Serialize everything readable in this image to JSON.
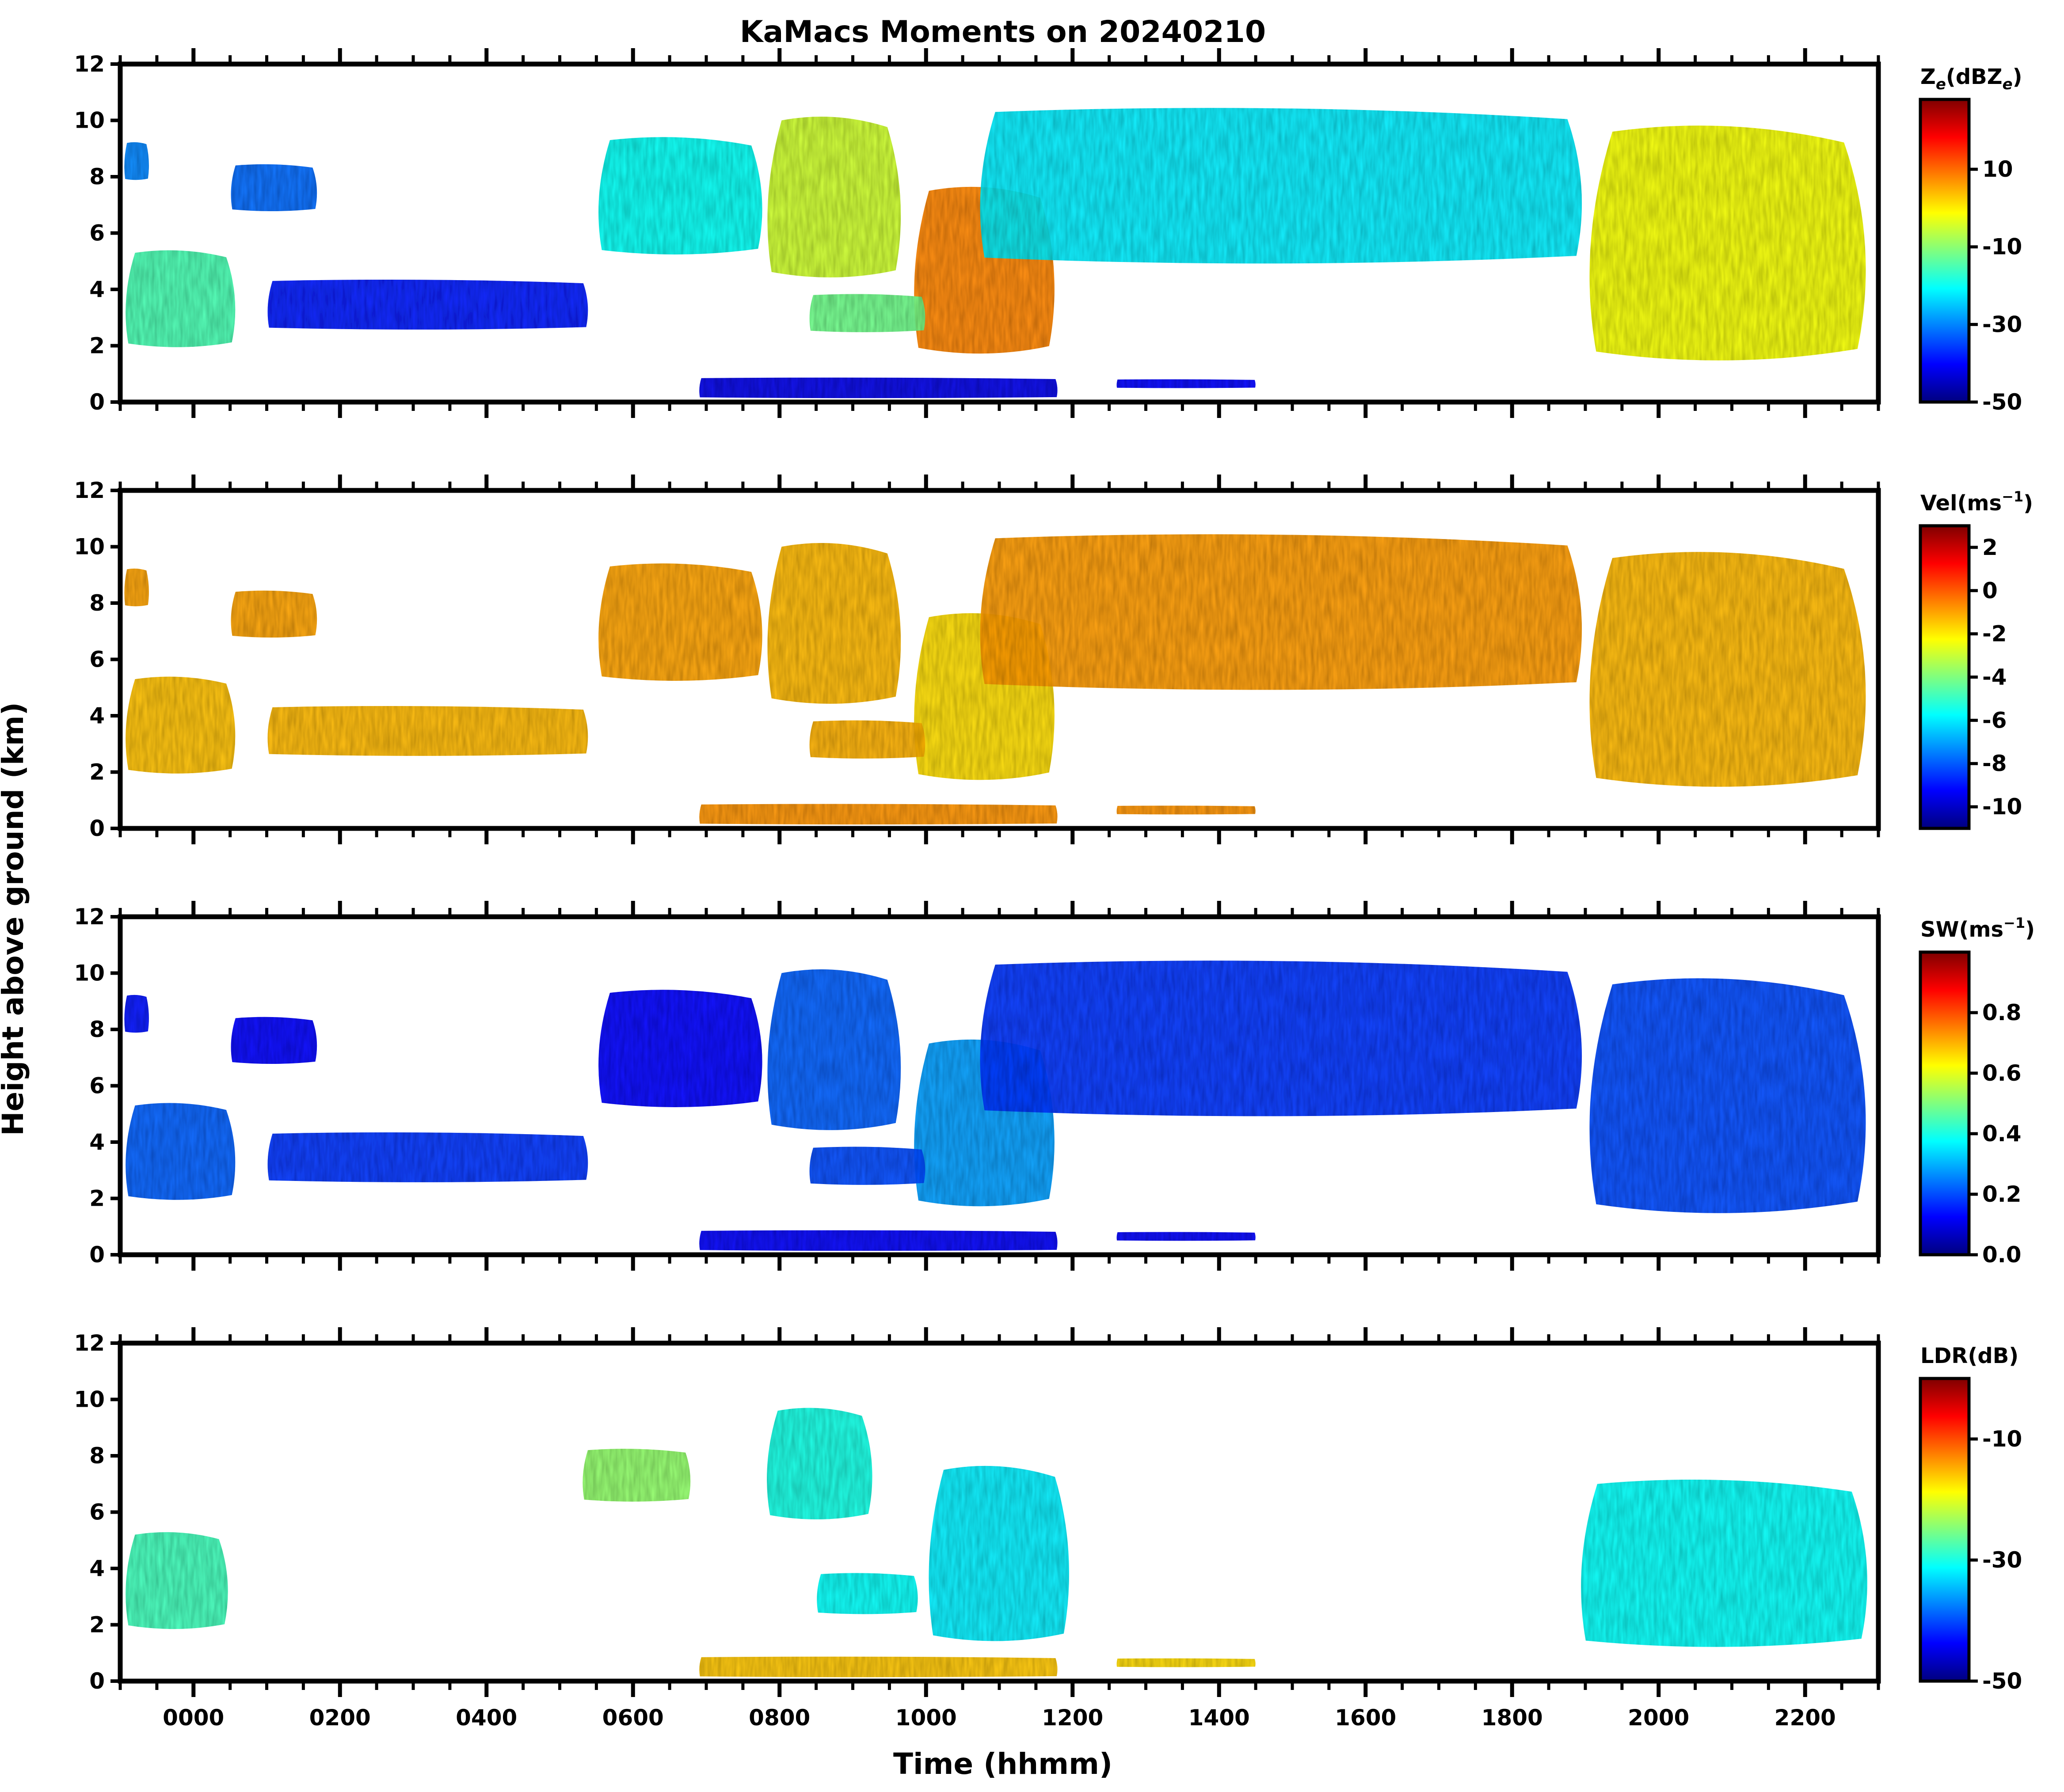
{
  "figure_title": "KaMacs Moments on 20240210",
  "ylabel": "Height above ground (km)",
  "xlabel": "Time (hhmm)",
  "chart_data": {
    "type": "heatmap",
    "title": "KaMacs Moments on 20240210",
    "xlabel": "Time (hhmm)",
    "ylabel": "Height above ground (km)",
    "xlim_hours": [
      -1.0,
      23.0
    ],
    "ylim": [
      0,
      12
    ],
    "yticks": [
      0,
      2,
      4,
      6,
      8,
      10,
      12
    ],
    "ytick_labels": [
      "0",
      "2",
      "4",
      "6",
      "8",
      "10",
      "12"
    ],
    "xticks_hours": [
      0,
      2,
      4,
      6,
      8,
      10,
      12,
      14,
      16,
      18,
      20,
      22
    ],
    "xtick_labels": [
      "0000",
      "0200",
      "0400",
      "0600",
      "0800",
      "1000",
      "1200",
      "1400",
      "1600",
      "1800",
      "2000",
      "2200"
    ],
    "colormap": [
      "#00007f",
      "#0000ff",
      "#007fff",
      "#00ffff",
      "#7fff7f",
      "#ffff00",
      "#ff7f00",
      "#ff0000",
      "#7f0000"
    ],
    "panels": [
      {
        "id": "ze",
        "colorbar_label": "Ze(dBZe)",
        "cbar_main": "Z",
        "cbar_sub1": "e",
        "cbar_mid": "(dBZ",
        "cbar_sub2": "e",
        "cbar_end": ")",
        "clim": [
          -50,
          28
        ],
        "cbar_ticks": [
          -50,
          -30,
          -10,
          10
        ],
        "cbar_tick_labels": [
          "-50",
          "-30",
          "-10",
          "10"
        ],
        "features": [
          {
            "name": "early-low-cloud",
            "t0": -0.95,
            "t1": 0.6,
            "bottom": 2.0,
            "top": 5.3,
            "value": -15
          },
          {
            "name": "early-high-cloud",
            "t0": -0.95,
            "t1": -0.6,
            "bottom": 7.9,
            "top": 9.2,
            "value": -30
          },
          {
            "name": "small-high-cloud",
            "t0": 0.5,
            "t1": 1.7,
            "bottom": 6.8,
            "top": 8.4,
            "value": -32
          },
          {
            "name": "low-broken-cloud",
            "t0": 1.0,
            "t1": 5.4,
            "bottom": 2.6,
            "top": 4.3,
            "value": -38
          },
          {
            "name": "main-upper-deck",
            "t0": 5.5,
            "t1": 7.8,
            "bottom": 5.3,
            "top": 9.3,
            "value": -20
          },
          {
            "name": "main-upper-deck-b",
            "t0": 7.8,
            "t1": 9.7,
            "bottom": 4.5,
            "top": 10.0,
            "value": -5
          },
          {
            "name": "stratiform-core",
            "t0": 9.8,
            "t1": 11.8,
            "bottom": 1.8,
            "top": 7.5,
            "value": 8
          },
          {
            "name": "lower-layer",
            "t0": 8.4,
            "t1": 10.0,
            "bottom": 2.5,
            "top": 3.8,
            "value": -12
          },
          {
            "name": "long-upper-deck",
            "t0": 10.7,
            "t1": 19.0,
            "bottom": 5.0,
            "top": 10.3,
            "value": -22
          },
          {
            "name": "descending-band",
            "t0": 19.0,
            "t1": 22.9,
            "bottom": 1.6,
            "top": 9.6,
            "value": -2
          },
          {
            "name": "near-surface-echo",
            "t0": 6.9,
            "t1": 11.8,
            "bottom": 0.15,
            "top": 0.85,
            "value": -42
          },
          {
            "name": "near-surface-echo-b",
            "t0": 12.6,
            "t1": 14.5,
            "bottom": 0.5,
            "top": 0.8,
            "value": -40
          }
        ]
      },
      {
        "id": "vel",
        "colorbar_label": "Vel(ms-1)",
        "cbar_main": "Vel(ms",
        "cbar_sup": "−1",
        "cbar_end": ")",
        "clim": [
          -11,
          3
        ],
        "cbar_ticks": [
          -10,
          -8,
          -6,
          -4,
          -2,
          0,
          2
        ],
        "cbar_tick_labels": [
          "-10",
          "-8",
          "-6",
          "-4",
          "-2",
          "0",
          "2"
        ],
        "features": [
          {
            "name": "early-low-cloud",
            "t0": -0.95,
            "t1": 0.6,
            "bottom": 2.0,
            "top": 5.3,
            "value": -1.4
          },
          {
            "name": "early-high-cloud",
            "t0": -0.95,
            "t1": -0.6,
            "bottom": 7.9,
            "top": 9.2,
            "value": -1.0
          },
          {
            "name": "small-high-cloud",
            "t0": 0.5,
            "t1": 1.7,
            "bottom": 6.8,
            "top": 8.4,
            "value": -1.0
          },
          {
            "name": "low-broken-cloud",
            "t0": 1.0,
            "t1": 5.4,
            "bottom": 2.6,
            "top": 4.3,
            "value": -1.3
          },
          {
            "name": "main-upper-deck",
            "t0": 5.5,
            "t1": 7.8,
            "bottom": 5.3,
            "top": 9.3,
            "value": -1.0
          },
          {
            "name": "main-upper-deck-b",
            "t0": 7.8,
            "t1": 9.7,
            "bottom": 4.5,
            "top": 10.0,
            "value": -1.3
          },
          {
            "name": "stratiform-core",
            "t0": 9.8,
            "t1": 11.8,
            "bottom": 1.8,
            "top": 7.5,
            "value": -1.8
          },
          {
            "name": "lower-layer",
            "t0": 8.4,
            "t1": 10.0,
            "bottom": 2.5,
            "top": 3.8,
            "value": -1.2
          },
          {
            "name": "long-upper-deck",
            "t0": 10.7,
            "t1": 19.0,
            "bottom": 5.0,
            "top": 10.3,
            "value": -0.9
          },
          {
            "name": "descending-band",
            "t0": 19.0,
            "t1": 22.9,
            "bottom": 1.6,
            "top": 9.6,
            "value": -1.3
          },
          {
            "name": "near-surface-echo",
            "t0": 6.9,
            "t1": 11.8,
            "bottom": 0.15,
            "top": 0.85,
            "value": -0.8
          },
          {
            "name": "near-surface-echo-b",
            "t0": 12.6,
            "t1": 14.5,
            "bottom": 0.5,
            "top": 0.8,
            "value": -0.8
          }
        ]
      },
      {
        "id": "sw",
        "colorbar_label": "SW(ms-1)",
        "cbar_main": "SW(ms",
        "cbar_sup": "−1",
        "cbar_end": ")",
        "clim": [
          0.0,
          1.0
        ],
        "cbar_ticks": [
          0.0,
          0.2,
          0.4,
          0.6,
          0.8
        ],
        "cbar_tick_labels": [
          "0.0",
          "0.2",
          "0.4",
          "0.6",
          "0.8"
        ],
        "features": [
          {
            "name": "early-low-cloud",
            "t0": -0.95,
            "t1": 0.6,
            "bottom": 2.0,
            "top": 5.3,
            "value": 0.22
          },
          {
            "name": "early-high-cloud",
            "t0": -0.95,
            "t1": -0.6,
            "bottom": 7.9,
            "top": 9.2,
            "value": 0.15
          },
          {
            "name": "small-high-cloud",
            "t0": 0.5,
            "t1": 1.7,
            "bottom": 6.8,
            "top": 8.4,
            "value": 0.14
          },
          {
            "name": "low-broken-cloud",
            "t0": 1.0,
            "t1": 5.4,
            "bottom": 2.6,
            "top": 4.3,
            "value": 0.18
          },
          {
            "name": "main-upper-deck",
            "t0": 5.5,
            "t1": 7.8,
            "bottom": 5.3,
            "top": 9.3,
            "value": 0.14
          },
          {
            "name": "main-upper-deck-b",
            "t0": 7.8,
            "t1": 9.7,
            "bottom": 4.5,
            "top": 10.0,
            "value": 0.22
          },
          {
            "name": "stratiform-core",
            "t0": 9.8,
            "t1": 11.8,
            "bottom": 1.8,
            "top": 7.5,
            "value": 0.28
          },
          {
            "name": "lower-layer",
            "t0": 8.4,
            "t1": 10.0,
            "bottom": 2.5,
            "top": 3.8,
            "value": 0.2
          },
          {
            "name": "long-upper-deck",
            "t0": 10.7,
            "t1": 19.0,
            "bottom": 5.0,
            "top": 10.3,
            "value": 0.18
          },
          {
            "name": "descending-band",
            "t0": 19.0,
            "t1": 22.9,
            "bottom": 1.6,
            "top": 9.6,
            "value": 0.2
          },
          {
            "name": "near-surface-echo",
            "t0": 6.9,
            "t1": 11.8,
            "bottom": 0.15,
            "top": 0.85,
            "value": 0.12
          },
          {
            "name": "near-surface-echo-b",
            "t0": 12.6,
            "t1": 14.5,
            "bottom": 0.5,
            "top": 0.8,
            "value": 0.12
          }
        ]
      },
      {
        "id": "ldr",
        "colorbar_label": "LDR(dB)",
        "cbar_main": "LDR(dB)",
        "clim": [
          -50,
          0
        ],
        "cbar_ticks": [
          -50,
          -30,
          -10
        ],
        "cbar_tick_labels": [
          "-50",
          "-30",
          "-10"
        ],
        "features": [
          {
            "name": "early-low-cloud",
            "t0": -0.95,
            "t1": 0.5,
            "bottom": 1.9,
            "top": 5.2,
            "value": -28
          },
          {
            "name": "upper-patch-a",
            "t0": 5.3,
            "t1": 6.8,
            "bottom": 6.4,
            "top": 8.2,
            "value": -24
          },
          {
            "name": "upper-patch-b",
            "t0": 7.8,
            "t1": 9.3,
            "bottom": 5.8,
            "top": 9.6,
            "value": -30
          },
          {
            "name": "lower-layer",
            "t0": 8.5,
            "t1": 9.9,
            "bottom": 2.4,
            "top": 3.8,
            "value": -31
          },
          {
            "name": "stratiform-core",
            "t0": 10.0,
            "t1": 12.0,
            "bottom": 1.5,
            "top": 7.5,
            "value": -32
          },
          {
            "name": "descending-band",
            "t0": 18.9,
            "t1": 22.9,
            "bottom": 1.3,
            "top": 7.0,
            "value": -31
          },
          {
            "name": "near-surface-echo",
            "t0": 6.9,
            "t1": 11.8,
            "bottom": 0.15,
            "top": 0.85,
            "value": -16
          },
          {
            "name": "near-surface-echo-b",
            "t0": 12.6,
            "t1": 14.5,
            "bottom": 0.5,
            "top": 0.8,
            "value": -17
          }
        ]
      }
    ]
  }
}
